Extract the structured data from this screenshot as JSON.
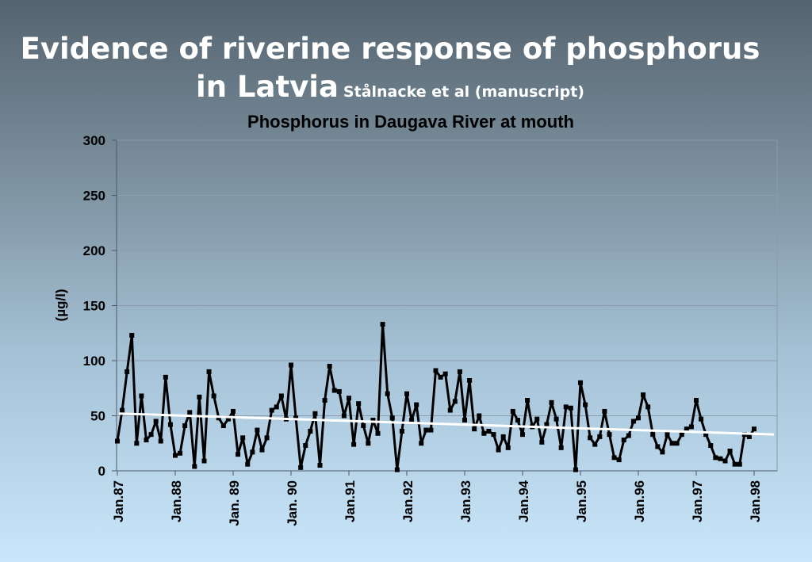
{
  "slide": {
    "title_line1": "Evidence of riverine response of phosphorus",
    "title_line2": "in Latvia",
    "subtitle": "Stålnacke et al (manuscript)"
  },
  "chart_data": {
    "type": "line",
    "title": "Phosphorus in Daugava River at mouth",
    "ylabel": "(µg/l)",
    "xlabel": "",
    "ylim": [
      0,
      300
    ],
    "yticks": [
      0,
      50,
      100,
      150,
      200,
      250,
      300
    ],
    "grid": true,
    "x_tick_labels": [
      "Jan.87",
      "Jan.88",
      "Jan. 89",
      "Jan. 90",
      "Jan.91",
      "Jan.92",
      "Jan.93",
      "Jan.94",
      "Jan.95",
      "Jan.96",
      "Jan.97",
      "Jan.98"
    ],
    "series": [
      {
        "values": [
          27,
          55,
          90,
          123,
          25,
          68,
          28,
          33,
          45,
          27,
          85,
          42,
          14,
          16,
          41,
          53,
          4,
          67,
          9,
          90,
          68,
          48,
          41,
          47,
          54,
          15,
          30,
          6,
          17,
          37,
          19,
          30,
          55,
          58,
          68,
          47,
          96,
          48,
          3,
          23,
          36,
          52,
          5,
          64,
          95,
          73,
          72,
          50,
          66,
          24,
          61,
          41,
          25,
          46,
          34,
          133,
          70,
          48,
          1,
          36,
          70,
          46,
          60,
          25,
          37,
          37,
          91,
          85,
          88,
          55,
          63,
          90,
          46,
          82,
          38,
          50,
          34,
          36,
          33,
          19,
          31,
          21,
          54,
          46,
          33,
          64,
          40,
          47,
          26,
          42,
          62,
          47,
          21,
          58,
          57,
          1,
          80,
          60,
          30,
          24,
          31,
          54,
          33,
          12,
          10,
          28,
          32,
          45,
          48,
          69,
          58,
          33,
          22,
          17,
          33,
          25,
          25,
          33,
          38,
          40,
          64,
          47,
          33,
          23,
          12,
          11,
          9,
          18,
          6,
          6,
          33,
          31,
          38
        ]
      },
      {
        "values": [
          52,
          33
        ]
      }
    ],
    "colors": {
      "data_line": "#000000",
      "trend_line": "#ffffff",
      "grid": "#8c9cac",
      "axis": "#4a5a6a",
      "text": "#000000"
    }
  }
}
